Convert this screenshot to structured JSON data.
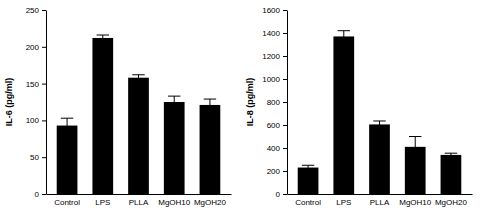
{
  "chart_data": [
    {
      "type": "bar",
      "y_label": "IL-6 (pg/ml)",
      "categories": [
        "Control",
        "LPS",
        "PLLA",
        "MgOH10",
        "MgOH20"
      ],
      "values": [
        93,
        212,
        158,
        125,
        121
      ],
      "errors": [
        10,
        4,
        4,
        8,
        8
      ],
      "color": "#000000",
      "ylim": [
        0,
        250
      ],
      "yticks": [
        0,
        50,
        100,
        150,
        200,
        250
      ]
    },
    {
      "type": "bar",
      "y_label": "IL-8 (pg/ml)",
      "categories": [
        "Control",
        "LPS",
        "PLLA",
        "MgOH10",
        "MgOH20"
      ],
      "values": [
        230,
        1370,
        605,
        410,
        340
      ],
      "errors": [
        20,
        50,
        30,
        90,
        15
      ],
      "color": "#000000",
      "ylim": [
        0,
        1600
      ],
      "yticks": [
        0,
        200,
        400,
        600,
        800,
        1000,
        1200,
        1400,
        1600
      ]
    }
  ]
}
